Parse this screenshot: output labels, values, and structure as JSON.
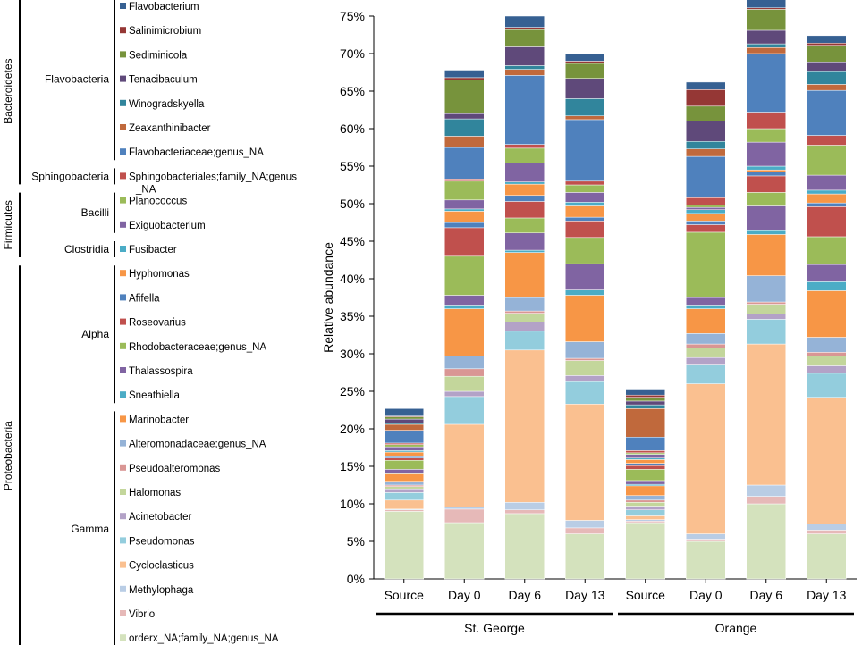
{
  "chart_data": {
    "type": "stacked-bar",
    "ylabel": "Relative abundance",
    "ylim": [
      0,
      75
    ],
    "yticks": [
      "0%",
      "5%",
      "10%",
      "15%",
      "20%",
      "25%",
      "30%",
      "35%",
      "40%",
      "45%",
      "50%",
      "55%",
      "60%",
      "65%",
      "70%",
      "75%"
    ],
    "categories": [
      "Source",
      "Day 0",
      "Day 6",
      "Day 13",
      "Source",
      "Day 0",
      "Day 6",
      "Day 13"
    ],
    "groups": [
      {
        "name": "St. George",
        "categories": [
          0,
          1,
          2,
          3
        ]
      },
      {
        "name": "Orange",
        "categories": [
          4,
          5,
          6,
          7
        ]
      }
    ],
    "series": [
      {
        "name": "orderx_NA;family_NA;genus_NA",
        "color": "#d4e2bd",
        "values": [
          9.0,
          7.5,
          8.7,
          6.0,
          7.5,
          5.0,
          10.0,
          6.0
        ]
      },
      {
        "name": "Vibrio",
        "color": "#e6b9b8",
        "values": [
          0.2,
          1.8,
          0.5,
          0.8,
          0.2,
          0.3,
          1.0,
          0.5
        ]
      },
      {
        "name": "Methylophaga",
        "color": "#b9cde5",
        "values": [
          0.1,
          0.3,
          1.0,
          1.0,
          0.2,
          0.7,
          1.5,
          0.8
        ]
      },
      {
        "name": "Cycloclasticus",
        "color": "#fac090",
        "values": [
          1.2,
          11.0,
          20.3,
          15.5,
          0.5,
          20.0,
          18.8,
          16.9
        ]
      },
      {
        "name": "Pseudomonas",
        "color": "#93cddd",
        "values": [
          1.0,
          3.7,
          2.5,
          3.0,
          0.8,
          2.5,
          3.3,
          3.2
        ]
      },
      {
        "name": "Acinetobacter",
        "color": "#b3a2c7",
        "values": [
          0.5,
          0.7,
          1.2,
          0.8,
          0.5,
          1.0,
          0.7,
          1.0
        ]
      },
      {
        "name": "Halomonas",
        "color": "#c3d69b",
        "values": [
          0.3,
          2.0,
          1.2,
          2.0,
          0.5,
          1.3,
          1.3,
          1.3
        ]
      },
      {
        "name": "Pseudoalteromonas",
        "color": "#d99694",
        "values": [
          0.2,
          1.0,
          0.3,
          0.3,
          0.3,
          0.5,
          0.3,
          0.5
        ]
      },
      {
        "name": "Alteromonadaceae;genus_NA",
        "color": "#95b3d7",
        "values": [
          0.5,
          1.7,
          1.8,
          2.2,
          0.6,
          1.4,
          3.5,
          2.0
        ]
      },
      {
        "name": "Marinobacter",
        "color": "#f79646",
        "values": [
          1.0,
          6.3,
          6.0,
          6.2,
          1.3,
          3.3,
          5.5,
          6.2
        ]
      },
      {
        "name": "Sneathiella",
        "color": "#4bacc6",
        "values": [
          0.1,
          0.5,
          0.3,
          0.7,
          0.2,
          0.5,
          0.5,
          1.2
        ]
      },
      {
        "name": "Thalassospira",
        "color": "#8064a2",
        "values": [
          0.5,
          1.3,
          2.3,
          3.5,
          0.5,
          1.0,
          3.3,
          2.3
        ]
      },
      {
        "name": "Rhodobacteraceae;genus_NA",
        "color": "#9bbb59",
        "values": [
          1.2,
          5.2,
          2.0,
          3.5,
          1.5,
          8.7,
          1.8,
          3.7
        ]
      },
      {
        "name": "Roseovarius",
        "color": "#c0504d",
        "values": [
          0.3,
          3.8,
          2.2,
          2.2,
          0.5,
          1.0,
          2.2,
          4.0
        ]
      },
      {
        "name": "Afifella",
        "color": "#4f81bd",
        "values": [
          0.3,
          0.7,
          0.8,
          0.5,
          0.3,
          0.5,
          0.5,
          0.5
        ]
      },
      {
        "name": "Hyphomonas",
        "color": "#f79646",
        "values": [
          0.5,
          1.5,
          1.5,
          1.5,
          0.5,
          1.0,
          0.3,
          1.2
        ]
      },
      {
        "name": "Fusibacter",
        "color": "#4bacc6",
        "values": [
          0.2,
          0.3,
          0.3,
          0.5,
          0.2,
          0.5,
          0.5,
          0.5
        ]
      },
      {
        "name": "Exiguobacterium",
        "color": "#8064a2",
        "values": [
          0.5,
          1.2,
          2.5,
          1.3,
          0.5,
          0.3,
          3.2,
          2.0
        ]
      },
      {
        "name": "Planococcus",
        "color": "#9bbb59",
        "values": [
          0.3,
          2.5,
          2.0,
          1.0,
          0.2,
          0.3,
          1.8,
          4.0
        ]
      },
      {
        "name": "Sphingobacteriales;family_NA;genus_NA",
        "color": "#c0504d",
        "values": [
          0.2,
          0.3,
          0.5,
          0.5,
          0.3,
          1.0,
          2.2,
          1.3
        ]
      },
      {
        "name": "Flavobacteriaceae;genus_NA",
        "color": "#4f81bd",
        "values": [
          1.7,
          4.2,
          9.2,
          8.2,
          1.8,
          5.5,
          7.8,
          6.0
        ]
      },
      {
        "name": "Zeaxanthinibacter",
        "color": "#c0693c",
        "values": [
          0.8,
          1.5,
          0.8,
          0.5,
          3.8,
          1.0,
          0.8,
          0.8
        ]
      },
      {
        "name": "Winogradskyella",
        "color": "#31859c",
        "values": [
          0.2,
          2.3,
          0.5,
          2.3,
          0.5,
          1.0,
          0.5,
          1.7
        ]
      },
      {
        "name": "Tenacibaculum",
        "color": "#5f497a",
        "values": [
          0.5,
          0.7,
          2.5,
          2.7,
          0.5,
          2.7,
          1.8,
          1.3
        ]
      },
      {
        "name": "Sediminicola",
        "color": "#77933c",
        "values": [
          0.3,
          4.5,
          2.3,
          2.0,
          0.5,
          2.0,
          2.8,
          2.2
        ]
      },
      {
        "name": "Salinimicrobium",
        "color": "#953735",
        "values": [
          0.1,
          0.3,
          0.3,
          0.3,
          0.3,
          2.2,
          0.2,
          0.3
        ]
      },
      {
        "name": "Flavobacterium",
        "color": "#366092",
        "values": [
          1.0,
          1.0,
          1.5,
          1.0,
          0.8,
          1.0,
          1.2,
          1.0
        ]
      }
    ],
    "legend": {
      "placement": "left",
      "phyla": [
        {
          "name": "Bacteroidetes",
          "classes": [
            {
              "name": "Flavobacteria",
              "taxa": [
                "Flavobacterium",
                "Salinimicrobium",
                "Sediminicola",
                "Tenacibaculum",
                "Winogradskyella",
                "Zeaxanthinibacter",
                "Flavobacteriaceae;genus_NA"
              ]
            },
            {
              "name": "Sphingobacteria",
              "taxa": [
                "Sphingobacteriales;family_NA;genus_NA"
              ]
            }
          ]
        },
        {
          "name": "Firmicutes",
          "classes": [
            {
              "name": "Bacilli",
              "taxa": [
                "Planococcus",
                "Exiguobacterium"
              ]
            },
            {
              "name": "Clostridia",
              "taxa": [
                "Fusibacter"
              ]
            }
          ]
        },
        {
          "name": "Proteobacteria",
          "classes": [
            {
              "name": "Alpha",
              "taxa": [
                "Hyphomonas",
                "Afifella",
                "Roseovarius",
                "Rhodobacteraceae;genus_NA",
                "Thalassospira",
                "Sneathiella"
              ]
            },
            {
              "name": "Gamma",
              "taxa": [
                "Marinobacter",
                "Alteromonadaceae;genus_NA",
                "Pseudoalteromonas",
                "Halomonas",
                "Acinetobacter",
                "Pseudomonas",
                "Cycloclasticus",
                "Methylophaga",
                "Vibrio",
                "orderx_NA;family_NA;genus_NA"
              ]
            }
          ]
        }
      ]
    }
  }
}
